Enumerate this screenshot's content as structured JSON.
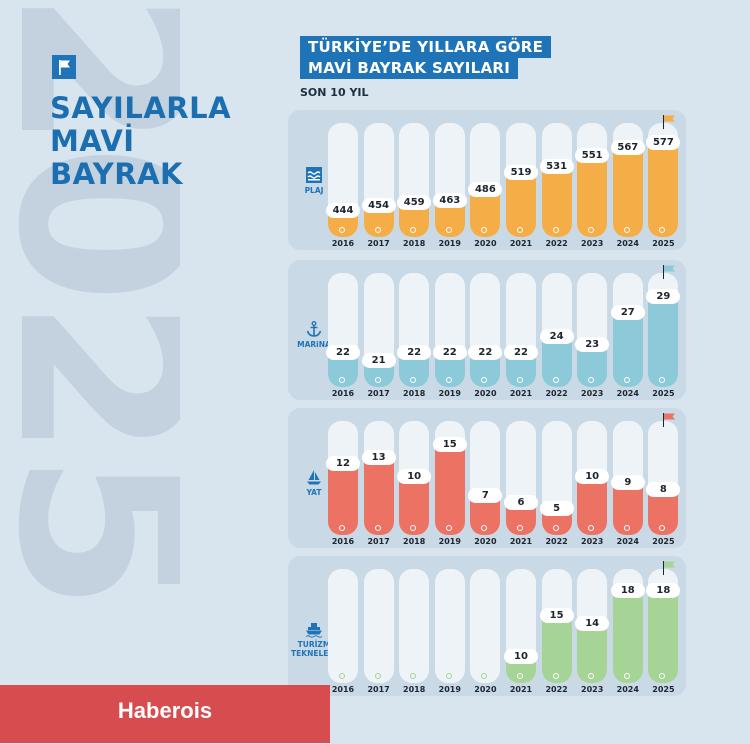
{
  "header": {
    "side_year": "2025",
    "left_title": [
      "SAYILARLA",
      "MAVİ",
      "BAYRAK"
    ],
    "title_lines": [
      "TÜRKİYE’DE YILLARA GÖRE",
      "MAVİ BAYRAK SAYILARI"
    ],
    "subtitle": "SON 10 YIL"
  },
  "icons": {
    "badge": "flag-icon",
    "plaj": "beach-icon",
    "marina": "anchor-icon",
    "yat": "sailboat-icon",
    "turizm": "ship-icon",
    "highlight": "pennant-flag-icon"
  },
  "chart_data": {
    "type": "bar",
    "categories": [
      "2016",
      "2017",
      "2018",
      "2019",
      "2020",
      "2021",
      "2022",
      "2023",
      "2024",
      "2025"
    ],
    "series": [
      {
        "name": "PLAJ",
        "color": "#f5ad47",
        "values": [
          444,
          454,
          459,
          463,
          486,
          519,
          531,
          551,
          567,
          577
        ]
      },
      {
        "name": "MARiNA",
        "color": "#8ccad9",
        "values": [
          22,
          21,
          22,
          22,
          22,
          22,
          24,
          23,
          27,
          29
        ]
      },
      {
        "name": "YAT",
        "color": "#ec7264",
        "values": [
          12,
          13,
          10,
          15,
          7,
          6,
          5,
          10,
          9,
          8
        ]
      },
      {
        "name": "TURİZM TEKNELERİ",
        "color": "#a6d396",
        "values": [
          null,
          null,
          null,
          null,
          null,
          10,
          15,
          14,
          18,
          18
        ]
      }
    ]
  },
  "watermark": "Haberois"
}
